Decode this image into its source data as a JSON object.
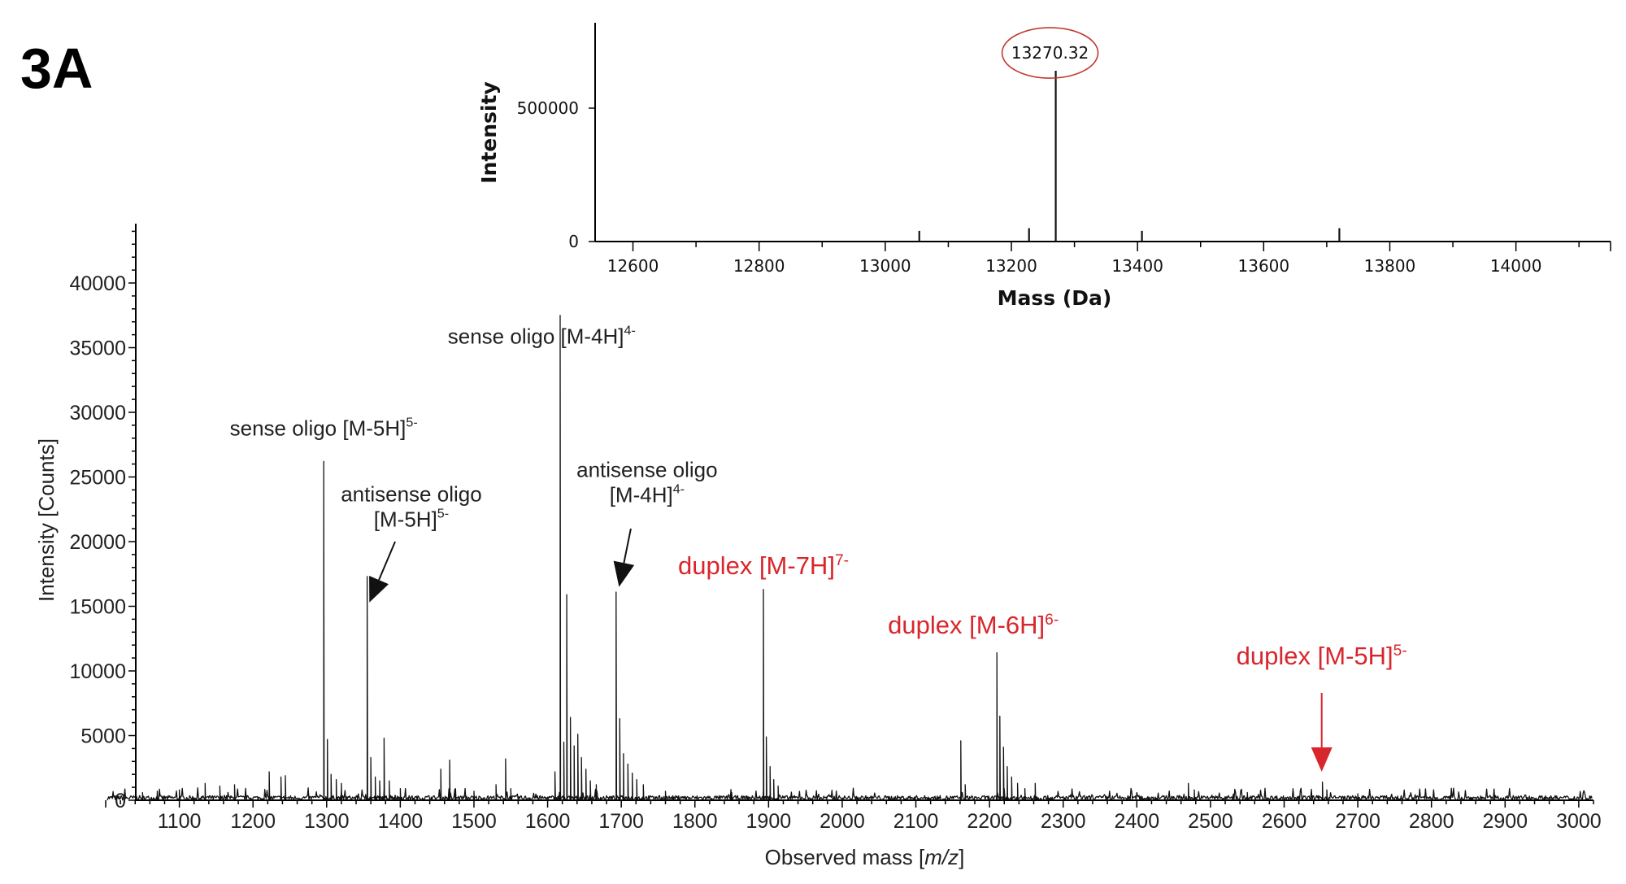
{
  "panel_label": "3A",
  "colors": {
    "annotation_red": "#d9262c",
    "trace": "#111111",
    "inset_circle": "#c0392b"
  },
  "chart_data": [
    {
      "id": "main",
      "type": "line",
      "xlabel": "Observed mass [m/z]",
      "xlabel_parts": [
        "Observed mass [",
        "m/z",
        "]"
      ],
      "ylabel": "Intensity [Counts]",
      "xlim": [
        1000,
        3020
      ],
      "ylim": [
        0,
        40000
      ],
      "xticks": [
        1100,
        1200,
        1300,
        1400,
        1500,
        1600,
        1700,
        1800,
        1900,
        2000,
        2100,
        2200,
        2300,
        2400,
        2500,
        2600,
        2700,
        2800,
        2900,
        3000
      ],
      "yticks": [
        0,
        5000,
        10000,
        15000,
        20000,
        25000,
        30000,
        35000,
        40000
      ],
      "baseline_noise": 600,
      "peaks": [
        {
          "x": 1050,
          "y": 600
        },
        {
          "x": 1070,
          "y": 700
        },
        {
          "x": 1100,
          "y": 800
        },
        {
          "x": 1135,
          "y": 1300
        },
        {
          "x": 1155,
          "y": 1100
        },
        {
          "x": 1175,
          "y": 1200
        },
        {
          "x": 1222,
          "y": 2200
        },
        {
          "x": 1238,
          "y": 1800
        },
        {
          "x": 1244,
          "y": 1900
        },
        {
          "x": 1296,
          "y": 26200
        },
        {
          "x": 1301,
          "y": 4700
        },
        {
          "x": 1306,
          "y": 2000
        },
        {
          "x": 1313,
          "y": 1600
        },
        {
          "x": 1320,
          "y": 1300
        },
        {
          "x": 1355,
          "y": 17300
        },
        {
          "x": 1360,
          "y": 3300
        },
        {
          "x": 1366,
          "y": 1800
        },
        {
          "x": 1372,
          "y": 1500
        },
        {
          "x": 1378,
          "y": 4800
        },
        {
          "x": 1385,
          "y": 1500
        },
        {
          "x": 1400,
          "y": 900
        },
        {
          "x": 1455,
          "y": 2400
        },
        {
          "x": 1467,
          "y": 3100
        },
        {
          "x": 1475,
          "y": 900
        },
        {
          "x": 1500,
          "y": 700
        },
        {
          "x": 1530,
          "y": 1200
        },
        {
          "x": 1543,
          "y": 3200
        },
        {
          "x": 1550,
          "y": 900
        },
        {
          "x": 1610,
          "y": 2200
        },
        {
          "x": 1617,
          "y": 37500
        },
        {
          "x": 1622,
          "y": 4500
        },
        {
          "x": 1626,
          "y": 15900
        },
        {
          "x": 1631,
          "y": 6400
        },
        {
          "x": 1636,
          "y": 4200
        },
        {
          "x": 1641,
          "y": 5100
        },
        {
          "x": 1646,
          "y": 3300
        },
        {
          "x": 1652,
          "y": 2400
        },
        {
          "x": 1658,
          "y": 1500
        },
        {
          "x": 1666,
          "y": 1200
        },
        {
          "x": 1693,
          "y": 16100
        },
        {
          "x": 1698,
          "y": 6300
        },
        {
          "x": 1703,
          "y": 3600
        },
        {
          "x": 1709,
          "y": 2800
        },
        {
          "x": 1715,
          "y": 2100
        },
        {
          "x": 1721,
          "y": 1600
        },
        {
          "x": 1730,
          "y": 1200
        },
        {
          "x": 1760,
          "y": 700
        },
        {
          "x": 1850,
          "y": 600
        },
        {
          "x": 1893,
          "y": 16300
        },
        {
          "x": 1897,
          "y": 4900
        },
        {
          "x": 1902,
          "y": 2600
        },
        {
          "x": 1907,
          "y": 1600
        },
        {
          "x": 1913,
          "y": 1100
        },
        {
          "x": 2161,
          "y": 4600
        },
        {
          "x": 2167,
          "y": 1200
        },
        {
          "x": 2210,
          "y": 11400
        },
        {
          "x": 2214,
          "y": 6500
        },
        {
          "x": 2219,
          "y": 4100
        },
        {
          "x": 2224,
          "y": 2600
        },
        {
          "x": 2230,
          "y": 1800
        },
        {
          "x": 2238,
          "y": 1300
        },
        {
          "x": 2248,
          "y": 900
        },
        {
          "x": 2262,
          "y": 1300
        },
        {
          "x": 2470,
          "y": 1300
        },
        {
          "x": 2478,
          "y": 800
        },
        {
          "x": 2550,
          "y": 600
        },
        {
          "x": 2652,
          "y": 1400
        },
        {
          "x": 2658,
          "y": 800
        },
        {
          "x": 2700,
          "y": 500
        }
      ],
      "annotations": [
        {
          "lines": [
            "sense oligo [M-5H]"
          ],
          "sup": "5-",
          "red": false,
          "x": 1296,
          "y": 28200,
          "arrow": null
        },
        {
          "lines": [
            "sense oligo [M-4H]"
          ],
          "sup": "4-",
          "red": false,
          "x": 1592,
          "y": 35300,
          "arrow": null
        },
        {
          "lines": [
            "antisense oligo",
            "[M-5H]"
          ],
          "sup": "5-",
          "red": false,
          "x": 1415,
          "y": 23100,
          "arrow": {
            "from": [
              1393,
              20000
            ],
            "to": [
              1358,
              15300
            ]
          }
        },
        {
          "lines": [
            "antisense oligo",
            "[M-4H]"
          ],
          "sup": "4-",
          "red": false,
          "x": 1735,
          "y": 25000,
          "arrow": {
            "from": [
              1713,
              21000
            ],
            "to": [
              1697,
              16500
            ]
          }
        },
        {
          "lines": [
            "duplex [M-7H]"
          ],
          "sup": "7-",
          "red": true,
          "x": 1893,
          "y": 17500,
          "arrow": null
        },
        {
          "lines": [
            "duplex [M-6H]"
          ],
          "sup": "6-",
          "red": true,
          "x": 2178,
          "y": 12900,
          "arrow": null
        },
        {
          "lines": [
            "duplex [M-5H]"
          ],
          "sup": "5-",
          "red": true,
          "x": 2651,
          "y": 10500,
          "arrow": {
            "from": [
              2651,
              8300
            ],
            "to": [
              2651,
              2200
            ]
          }
        }
      ]
    },
    {
      "id": "inset",
      "type": "line",
      "xlabel": "Mass (Da)",
      "ylabel": "Intensity",
      "xlim": [
        12540,
        14150
      ],
      "ylim": [
        0,
        820000
      ],
      "xticks": [
        12600,
        12800,
        13000,
        13200,
        13400,
        13600,
        13800,
        14000
      ],
      "yticks": [
        0,
        500000
      ],
      "peaks": [
        {
          "x": 13054,
          "y": 40000
        },
        {
          "x": 13228,
          "y": 50000
        },
        {
          "x": 13270.32,
          "y": 640000
        },
        {
          "x": 13407,
          "y": 40000
        },
        {
          "x": 13720,
          "y": 50000
        }
      ],
      "highlight_label": "13270.32"
    }
  ]
}
